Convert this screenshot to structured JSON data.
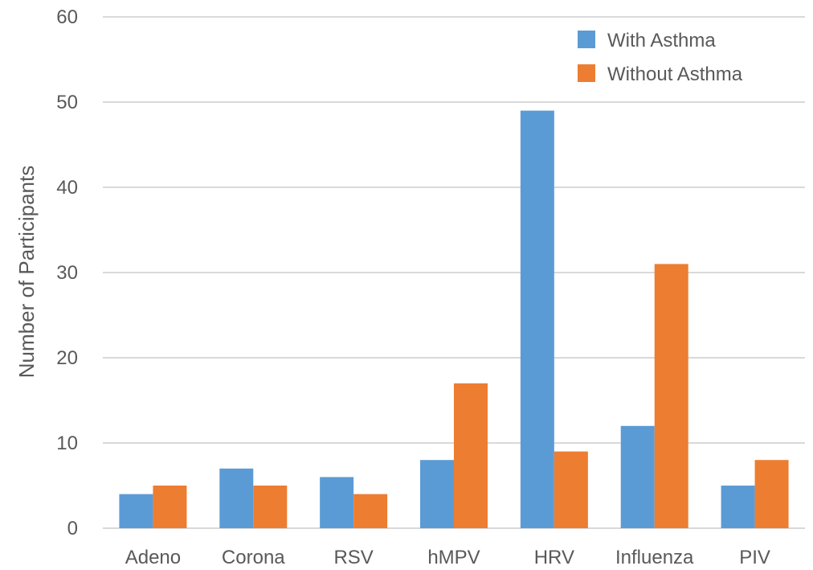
{
  "chart_data": {
    "type": "bar",
    "title": "",
    "xlabel": "",
    "ylabel": "Number of Participants",
    "ylim": [
      0,
      60
    ],
    "yticks": [
      0,
      10,
      20,
      30,
      40,
      50,
      60
    ],
    "grid": true,
    "legend_position": "top-right",
    "categories": [
      "Adeno",
      "Corona",
      "RSV",
      "hMPV",
      "HRV",
      "Influenza",
      "PIV"
    ],
    "series": [
      {
        "name": "With Asthma",
        "color": "#5b9bd5",
        "values": [
          4,
          7,
          6,
          8,
          49,
          12,
          5
        ]
      },
      {
        "name": "Without Asthma",
        "color": "#ed7d31",
        "values": [
          5,
          5,
          4,
          17,
          9,
          31,
          8
        ]
      }
    ]
  }
}
